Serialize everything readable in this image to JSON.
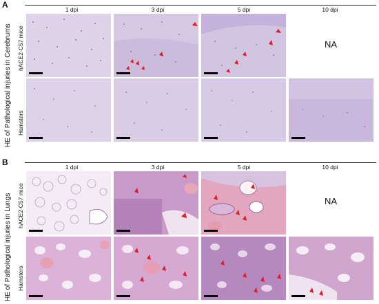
{
  "panels": [
    {
      "letter": "A",
      "outer_label": "HE of Pathological injuries in Cerebrums",
      "columns": [
        "1 dpi",
        "3 dpi",
        "5 dpi",
        "10 dpi"
      ],
      "rows": [
        {
          "label": "hACE2-C57 mice",
          "na_text": "NA"
        },
        {
          "label": "Hamsters"
        }
      ]
    },
    {
      "letter": "B",
      "outer_label": "HE of Pathological injuries in Lungs",
      "columns": [
        "1 dpi",
        "3 dpi",
        "5 dpi",
        "10 dpi"
      ],
      "rows": [
        {
          "label": "hACE2-C57 mice",
          "na_text": "NA"
        },
        {
          "label": "Hamsters"
        }
      ]
    }
  ],
  "colors": {
    "brain_tissue": "#d9cfe6",
    "brain_dark": "#c9b8dc",
    "lung_tissue": "#e5cfe4",
    "lung_dense": "#b27fb6",
    "arrow": "#e31b23"
  }
}
